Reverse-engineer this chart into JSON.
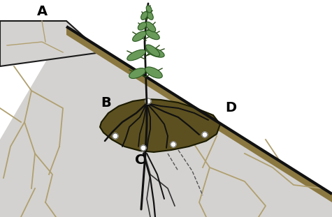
{
  "bg_color": "#ffffff",
  "rock_fill": "#d4d2d0",
  "rock_outline": "#1a1a1a",
  "crack_color": "#b0a070",
  "soil_fill": "#5c5020",
  "soil_outline": "#1a1a00",
  "stem_color": "#111111",
  "leaf_fill": "#6a9a5a",
  "leaf_outline": "#2a5a20",
  "root_color": "#111111",
  "slope_band_color": "#8a7840",
  "label_A": "A",
  "label_B": "B",
  "label_C": "C",
  "label_D": "D",
  "label_fontsize": 14,
  "label_fontweight": "bold",
  "white": "#ffffff"
}
